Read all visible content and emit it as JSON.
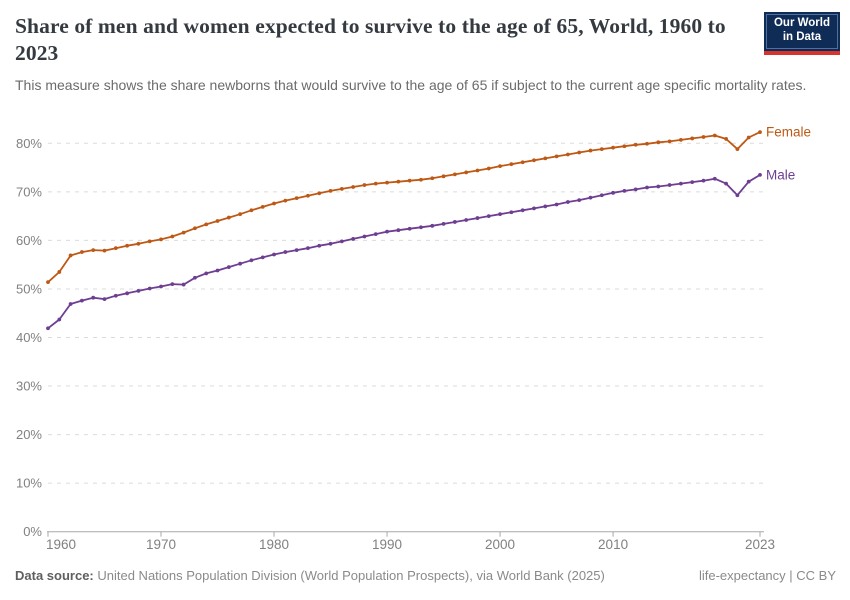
{
  "header": {
    "title": "Share of men and women expected to survive to the age of 65, World, 1960 to 2023",
    "subtitle": "This measure shows the share newborns that would survive to the age of 65 if subject to the current age specific mortality rates.",
    "logo": {
      "line1": "Our World",
      "line2": "in Data"
    }
  },
  "footer": {
    "datasource_label": "Data source:",
    "datasource_text": " United Nations Population Division (World Population Prospects), via World Bank (2025)",
    "license": "life-expectancy | CC BY"
  },
  "colors": {
    "female": "#BE5915",
    "male": "#6D3E91",
    "grid": "#DBDBDB",
    "axis": "#A8A8A8",
    "tick_text": "#818181",
    "logo_bg": "#0F2C56",
    "logo_stripe": "#D6342D"
  },
  "chart_data": {
    "type": "line",
    "title": "Share of men and women expected to survive to the age of 65, World, 1960 to 2023",
    "xlabel": "",
    "ylabel": "",
    "x": [
      1960,
      1961,
      1962,
      1963,
      1964,
      1965,
      1966,
      1967,
      1968,
      1969,
      1970,
      1971,
      1972,
      1973,
      1974,
      1975,
      1976,
      1977,
      1978,
      1979,
      1980,
      1981,
      1982,
      1983,
      1984,
      1985,
      1986,
      1987,
      1988,
      1989,
      1990,
      1991,
      1992,
      1993,
      1994,
      1995,
      1996,
      1997,
      1998,
      1999,
      2000,
      2001,
      2002,
      2003,
      2004,
      2005,
      2006,
      2007,
      2008,
      2009,
      2010,
      2011,
      2012,
      2013,
      2014,
      2015,
      2016,
      2017,
      2018,
      2019,
      2020,
      2021,
      2022,
      2023
    ],
    "series": [
      {
        "name": "Female",
        "color": "#BE5915",
        "values": [
          51.4,
          53.5,
          56.9,
          57.6,
          58.0,
          57.9,
          58.4,
          58.9,
          59.3,
          59.8,
          60.2,
          60.8,
          61.6,
          62.5,
          63.3,
          64.0,
          64.7,
          65.4,
          66.2,
          66.9,
          67.6,
          68.2,
          68.7,
          69.2,
          69.7,
          70.2,
          70.6,
          71.0,
          71.4,
          71.7,
          71.9,
          72.1,
          72.3,
          72.5,
          72.8,
          73.2,
          73.6,
          74.0,
          74.4,
          74.8,
          75.3,
          75.7,
          76.1,
          76.5,
          76.9,
          77.3,
          77.7,
          78.1,
          78.5,
          78.8,
          79.1,
          79.4,
          79.7,
          79.9,
          80.2,
          80.4,
          80.7,
          81.0,
          81.3,
          81.6,
          80.9,
          78.8,
          81.2,
          82.3
        ]
      },
      {
        "name": "Male",
        "color": "#6D3E91",
        "values": [
          41.9,
          43.7,
          46.9,
          47.6,
          48.2,
          47.9,
          48.6,
          49.1,
          49.6,
          50.1,
          50.5,
          51.0,
          50.9,
          52.3,
          53.2,
          53.8,
          54.5,
          55.2,
          55.9,
          56.5,
          57.1,
          57.6,
          58.0,
          58.4,
          58.9,
          59.3,
          59.8,
          60.3,
          60.8,
          61.3,
          61.8,
          62.1,
          62.4,
          62.7,
          63.0,
          63.4,
          63.8,
          64.2,
          64.6,
          65.0,
          65.4,
          65.8,
          66.2,
          66.6,
          67.0,
          67.4,
          67.9,
          68.3,
          68.8,
          69.3,
          69.8,
          70.2,
          70.5,
          70.9,
          71.1,
          71.4,
          71.7,
          72.0,
          72.3,
          72.7,
          71.7,
          69.3,
          72.1,
          73.5
        ]
      }
    ],
    "ylim": [
      0,
      80
    ],
    "yticks": [
      0,
      10,
      20,
      30,
      40,
      50,
      60,
      70,
      80
    ],
    "ytick_labels": [
      "0%",
      "10%",
      "20%",
      "30%",
      "40%",
      "50%",
      "60%",
      "70%",
      "80%"
    ],
    "xticks": [
      1960,
      1970,
      1980,
      1990,
      2000,
      2010,
      2023
    ],
    "xtick_labels": [
      "1960",
      "1970",
      "1980",
      "1990",
      "2000",
      "2010",
      "2023"
    ],
    "grid": "horizontal-dashed",
    "legend": "line-end-labels"
  }
}
